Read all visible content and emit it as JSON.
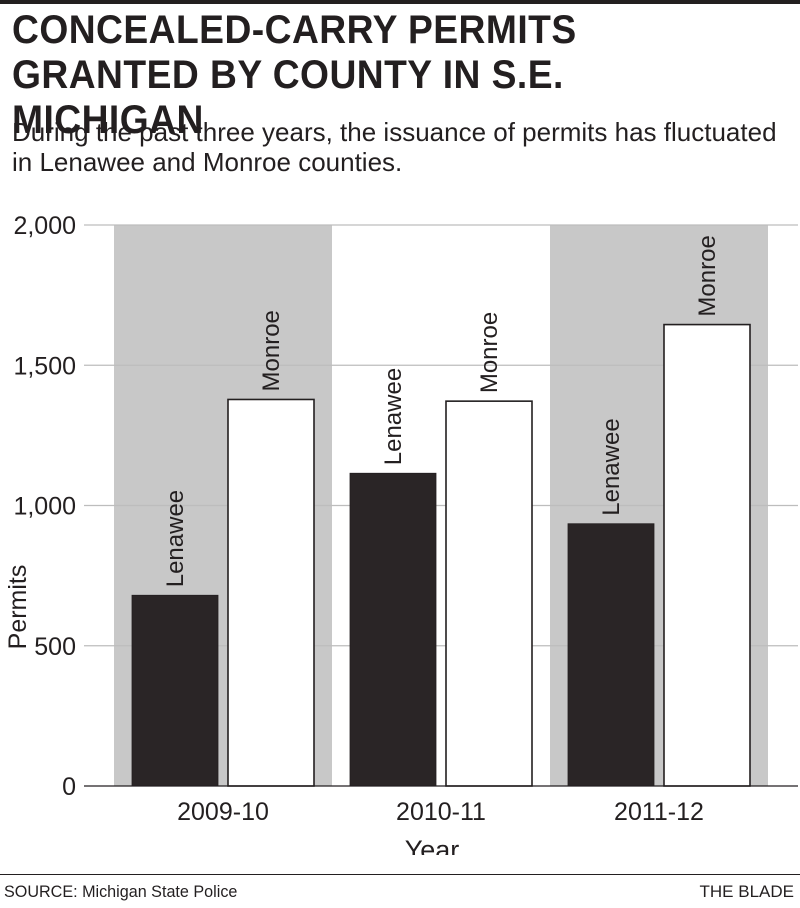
{
  "header": {
    "title": "CONCEALED-CARRY PERMITS GRANTED BY COUNTY IN S.E. MICHIGAN",
    "subtitle": "During the past three years, the issuance of permits has fluctuated in Lenawee and Monroe counties."
  },
  "footer": {
    "source": "SOURCE: Michigan State Police",
    "credit": "THE BLADE"
  },
  "chart_data": {
    "type": "bar",
    "categories": [
      "2009-10",
      "2010-11",
      "2011-12"
    ],
    "series": [
      {
        "name": "Lenawee",
        "values": [
          680,
          1115,
          935
        ],
        "color": "#2a2526"
      },
      {
        "name": "Monroe",
        "values": [
          1378,
          1372,
          1645
        ],
        "color": "#ffffff"
      }
    ],
    "title": "CONCEALED-CARRY PERMITS GRANTED BY COUNTY IN S.E. MICHIGAN",
    "xlabel": "Year",
    "ylabel": "Permits",
    "ylim": [
      0,
      2000
    ],
    "yticks": [
      0,
      500,
      1000,
      1500,
      2000
    ],
    "ytick_labels": [
      "0",
      "500",
      "1,000",
      "1,500",
      "2,000"
    ],
    "grid": true,
    "legend": "none (series names labeled on bars)",
    "colors": {
      "band": "#c8c8c8",
      "ink": "#231f20",
      "grid": "#bdbdbd"
    }
  }
}
